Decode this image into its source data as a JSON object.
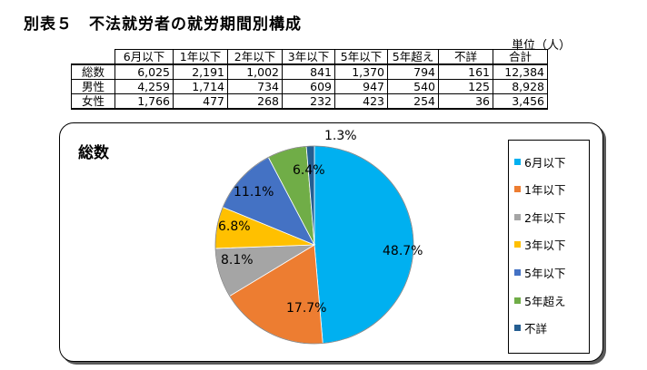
{
  "header": {
    "title": "別表５　不法就労者の就労期間別構成",
    "unit": "単位（人）"
  },
  "table": {
    "columns": [
      "6月以下",
      "1年以下",
      "2年以下",
      "3年以下",
      "5年以下",
      "5年超え",
      "不詳",
      "合計"
    ],
    "rows": [
      {
        "label": "総数",
        "values": [
          "6,025",
          "2,191",
          "1,002",
          "841",
          "1,370",
          "794",
          "161",
          "12,384"
        ]
      },
      {
        "label": "男性",
        "values": [
          "4,259",
          "1,714",
          "734",
          "609",
          "947",
          "540",
          "125",
          "8,928"
        ]
      },
      {
        "label": "女性",
        "values": [
          "1,766",
          "477",
          "268",
          "232",
          "423",
          "254",
          "36",
          "3,456"
        ]
      }
    ]
  },
  "chart_data": {
    "type": "pie",
    "title": "総数",
    "categories": [
      "6月以下",
      "1年以下",
      "2年以下",
      "3年以下",
      "5年以下",
      "5年超え",
      "不詳"
    ],
    "values": [
      48.7,
      17.7,
      8.1,
      6.8,
      11.1,
      6.4,
      1.3
    ],
    "labels": [
      "48.7%",
      "17.7%",
      "8.1%",
      "6.8%",
      "11.1%",
      "6.4%",
      "1.3%"
    ],
    "colors": [
      "#00b0f0",
      "#ed7d31",
      "#a5a5a5",
      "#ffc000",
      "#4472c4",
      "#70ad47",
      "#255e91"
    ],
    "legend": "right",
    "start": "top, clockwise"
  }
}
